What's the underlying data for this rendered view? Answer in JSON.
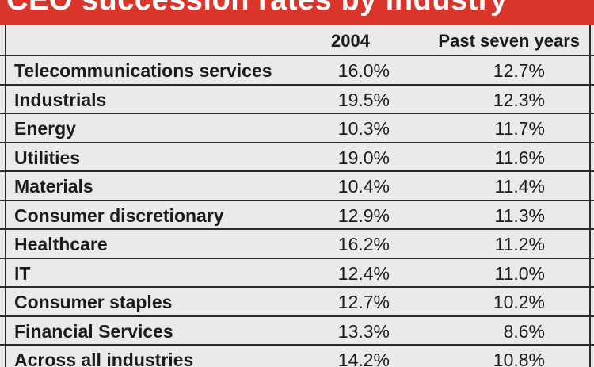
{
  "chart_data": {
    "type": "table",
    "title": "CEO succession rates by industry",
    "columns": [
      "",
      "2004",
      "Past seven years"
    ],
    "rows": [
      {
        "label": "Telecommunications services",
        "v2004": "16.0%",
        "past": "12.7%"
      },
      {
        "label": "Industrials",
        "v2004": "19.5%",
        "past": "12.3%"
      },
      {
        "label": "Energy",
        "v2004": "10.3%",
        "past": "11.7%"
      },
      {
        "label": "Utilities",
        "v2004": "19.0%",
        "past": "11.6%"
      },
      {
        "label": "Materials",
        "v2004": "10.4%",
        "past": "11.4%"
      },
      {
        "label": "Consumer discretionary",
        "v2004": "12.9%",
        "past": "11.3%"
      },
      {
        "label": "Healthcare",
        "v2004": "16.2%",
        "past": "11.2%"
      },
      {
        "label": "IT",
        "v2004": "12.4%",
        "past": "11.0%"
      },
      {
        "label": "Consumer staples",
        "v2004": "12.7%",
        "past": "10.2%"
      },
      {
        "label": "Financial Services",
        "v2004": "13.3%",
        "past": "8.6%"
      },
      {
        "label": "Across all industries",
        "v2004": "14.2%",
        "past": "10.8%"
      }
    ]
  },
  "colors": {
    "title_background": "#d9352a",
    "title_text": "#ffffff",
    "background": "#e9ebe8",
    "rule": "#2a2a2a"
  }
}
